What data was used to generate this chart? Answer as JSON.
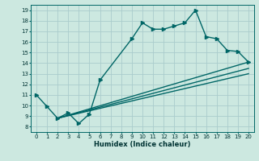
{
  "title": "",
  "xlabel": "Humidex (Indice chaleur)",
  "bg_color": "#cce8e0",
  "grid_color": "#aacccc",
  "line_color": "#006666",
  "xlim": [
    -0.5,
    20.5
  ],
  "ylim": [
    7.5,
    19.5
  ],
  "xticks": [
    0,
    1,
    2,
    3,
    4,
    5,
    6,
    7,
    8,
    9,
    10,
    11,
    12,
    13,
    14,
    15,
    16,
    17,
    18,
    19,
    20
  ],
  "yticks": [
    8,
    9,
    10,
    11,
    12,
    13,
    14,
    15,
    16,
    17,
    18,
    19
  ],
  "curve1_x": [
    0,
    1,
    2,
    3,
    4,
    5,
    6,
    9,
    10,
    11,
    12,
    13,
    14,
    15,
    16,
    17,
    18,
    19,
    20
  ],
  "curve1_y": [
    11.0,
    9.9,
    8.8,
    9.3,
    8.3,
    9.2,
    12.4,
    16.3,
    17.8,
    17.2,
    17.2,
    17.5,
    17.8,
    19.0,
    16.5,
    16.3,
    15.2,
    15.1,
    14.1
  ],
  "curve2_x": [
    2,
    20
  ],
  "curve2_y": [
    8.8,
    14.1
  ],
  "curve3_x": [
    2,
    20
  ],
  "curve3_y": [
    8.8,
    13.5
  ],
  "curve4_x": [
    2,
    20
  ],
  "curve4_y": [
    8.8,
    13.0
  ],
  "marker_size": 3,
  "line_width": 1.0,
  "xlabel_fontsize": 6.0,
  "tick_fontsize": 5.0
}
